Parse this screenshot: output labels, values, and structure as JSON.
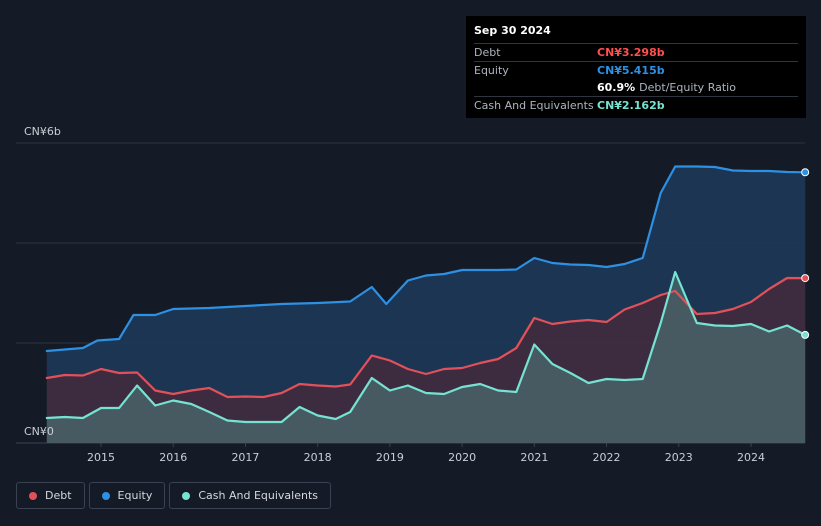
{
  "colors": {
    "background": "#151b26",
    "debt": "#e2515a",
    "equity": "#2d90e3",
    "cash": "#76e3d2",
    "debt_text": "#ff4f4f",
    "equity_text": "#2d90e3",
    "cash_text": "#76e3d2"
  },
  "tooltip": {
    "date": "Sep 30 2024",
    "debt_label": "Debt",
    "debt_value": "CN¥3.298b",
    "equity_label": "Equity",
    "equity_value": "CN¥5.415b",
    "ratio_value": "60.9%",
    "ratio_label": "Debt/Equity Ratio",
    "cash_label": "Cash And Equivalents",
    "cash_value": "CN¥2.162b"
  },
  "legend": {
    "debt": "Debt",
    "equity": "Equity",
    "cash": "Cash And Equivalents"
  },
  "chart_data": {
    "type": "area",
    "y_unit": "CN¥ billions",
    "ylim": [
      0,
      6
    ],
    "y_tick_labels": [
      "CN¥0",
      "CN¥6b"
    ],
    "x_tick_labels": [
      "2015",
      "2016",
      "2017",
      "2018",
      "2019",
      "2020",
      "2021",
      "2022",
      "2023",
      "2024"
    ],
    "xlim": [
      2014.2,
      2024.75
    ],
    "grid": true,
    "series": [
      {
        "name": "Equity",
        "points": [
          [
            2014.25,
            1.84
          ],
          [
            2014.5,
            1.87
          ],
          [
            2014.75,
            1.9
          ],
          [
            2014.95,
            2.05
          ],
          [
            2015.25,
            2.08
          ],
          [
            2015.45,
            2.56
          ],
          [
            2015.75,
            2.56
          ],
          [
            2016.0,
            2.68
          ],
          [
            2016.5,
            2.7
          ],
          [
            2017.0,
            2.74
          ],
          [
            2017.5,
            2.78
          ],
          [
            2018.0,
            2.8
          ],
          [
            2018.45,
            2.83
          ],
          [
            2018.75,
            3.12
          ],
          [
            2018.95,
            2.78
          ],
          [
            2019.25,
            3.25
          ],
          [
            2019.5,
            3.35
          ],
          [
            2019.75,
            3.38
          ],
          [
            2020.0,
            3.46
          ],
          [
            2020.5,
            3.46
          ],
          [
            2020.75,
            3.47
          ],
          [
            2021.0,
            3.7
          ],
          [
            2021.25,
            3.6
          ],
          [
            2021.5,
            3.57
          ],
          [
            2021.75,
            3.56
          ],
          [
            2022.0,
            3.52
          ],
          [
            2022.25,
            3.58
          ],
          [
            2022.5,
            3.7
          ],
          [
            2022.75,
            5.0
          ],
          [
            2022.95,
            5.53
          ],
          [
            2023.25,
            5.53
          ],
          [
            2023.5,
            5.52
          ],
          [
            2023.75,
            5.45
          ],
          [
            2024.0,
            5.44
          ],
          [
            2024.25,
            5.44
          ],
          [
            2024.5,
            5.42
          ],
          [
            2024.75,
            5.415
          ]
        ]
      },
      {
        "name": "Debt",
        "points": [
          [
            2014.25,
            1.3
          ],
          [
            2014.5,
            1.36
          ],
          [
            2014.75,
            1.35
          ],
          [
            2015.0,
            1.48
          ],
          [
            2015.25,
            1.4
          ],
          [
            2015.5,
            1.41
          ],
          [
            2015.75,
            1.05
          ],
          [
            2016.0,
            0.98
          ],
          [
            2016.25,
            1.05
          ],
          [
            2016.5,
            1.1
          ],
          [
            2016.75,
            0.92
          ],
          [
            2017.0,
            0.93
          ],
          [
            2017.25,
            0.92
          ],
          [
            2017.5,
            1.0
          ],
          [
            2017.75,
            1.18
          ],
          [
            2018.0,
            1.15
          ],
          [
            2018.25,
            1.13
          ],
          [
            2018.45,
            1.17
          ],
          [
            2018.75,
            1.75
          ],
          [
            2019.0,
            1.65
          ],
          [
            2019.25,
            1.48
          ],
          [
            2019.5,
            1.38
          ],
          [
            2019.75,
            1.48
          ],
          [
            2020.0,
            1.5
          ],
          [
            2020.25,
            1.6
          ],
          [
            2020.5,
            1.68
          ],
          [
            2020.75,
            1.9
          ],
          [
            2021.0,
            2.5
          ],
          [
            2021.25,
            2.38
          ],
          [
            2021.5,
            2.43
          ],
          [
            2021.75,
            2.46
          ],
          [
            2022.0,
            2.42
          ],
          [
            2022.25,
            2.67
          ],
          [
            2022.5,
            2.8
          ],
          [
            2022.75,
            2.96
          ],
          [
            2022.95,
            3.04
          ],
          [
            2023.25,
            2.58
          ],
          [
            2023.5,
            2.6
          ],
          [
            2023.75,
            2.68
          ],
          [
            2024.0,
            2.82
          ],
          [
            2024.25,
            3.08
          ],
          [
            2024.5,
            3.3
          ],
          [
            2024.75,
            3.298
          ]
        ]
      },
      {
        "name": "Cash And Equivalents",
        "points": [
          [
            2014.25,
            0.5
          ],
          [
            2014.5,
            0.52
          ],
          [
            2014.75,
            0.5
          ],
          [
            2015.0,
            0.7
          ],
          [
            2015.25,
            0.7
          ],
          [
            2015.5,
            1.15
          ],
          [
            2015.75,
            0.75
          ],
          [
            2016.0,
            0.85
          ],
          [
            2016.25,
            0.78
          ],
          [
            2016.5,
            0.62
          ],
          [
            2016.75,
            0.45
          ],
          [
            2017.0,
            0.42
          ],
          [
            2017.25,
            0.42
          ],
          [
            2017.5,
            0.42
          ],
          [
            2017.75,
            0.72
          ],
          [
            2018.0,
            0.55
          ],
          [
            2018.25,
            0.48
          ],
          [
            2018.45,
            0.62
          ],
          [
            2018.75,
            1.3
          ],
          [
            2019.0,
            1.05
          ],
          [
            2019.25,
            1.15
          ],
          [
            2019.5,
            1.0
          ],
          [
            2019.75,
            0.98
          ],
          [
            2020.0,
            1.12
          ],
          [
            2020.25,
            1.18
          ],
          [
            2020.5,
            1.05
          ],
          [
            2020.75,
            1.02
          ],
          [
            2021.0,
            1.97
          ],
          [
            2021.25,
            1.58
          ],
          [
            2021.5,
            1.4
          ],
          [
            2021.75,
            1.2
          ],
          [
            2022.0,
            1.28
          ],
          [
            2022.25,
            1.26
          ],
          [
            2022.5,
            1.28
          ],
          [
            2022.75,
            2.4
          ],
          [
            2022.95,
            3.42
          ],
          [
            2023.25,
            2.4
          ],
          [
            2023.5,
            2.35
          ],
          [
            2023.75,
            2.34
          ],
          [
            2024.0,
            2.38
          ],
          [
            2024.25,
            2.23
          ],
          [
            2024.5,
            2.35
          ],
          [
            2024.75,
            2.162
          ]
        ]
      }
    ]
  }
}
